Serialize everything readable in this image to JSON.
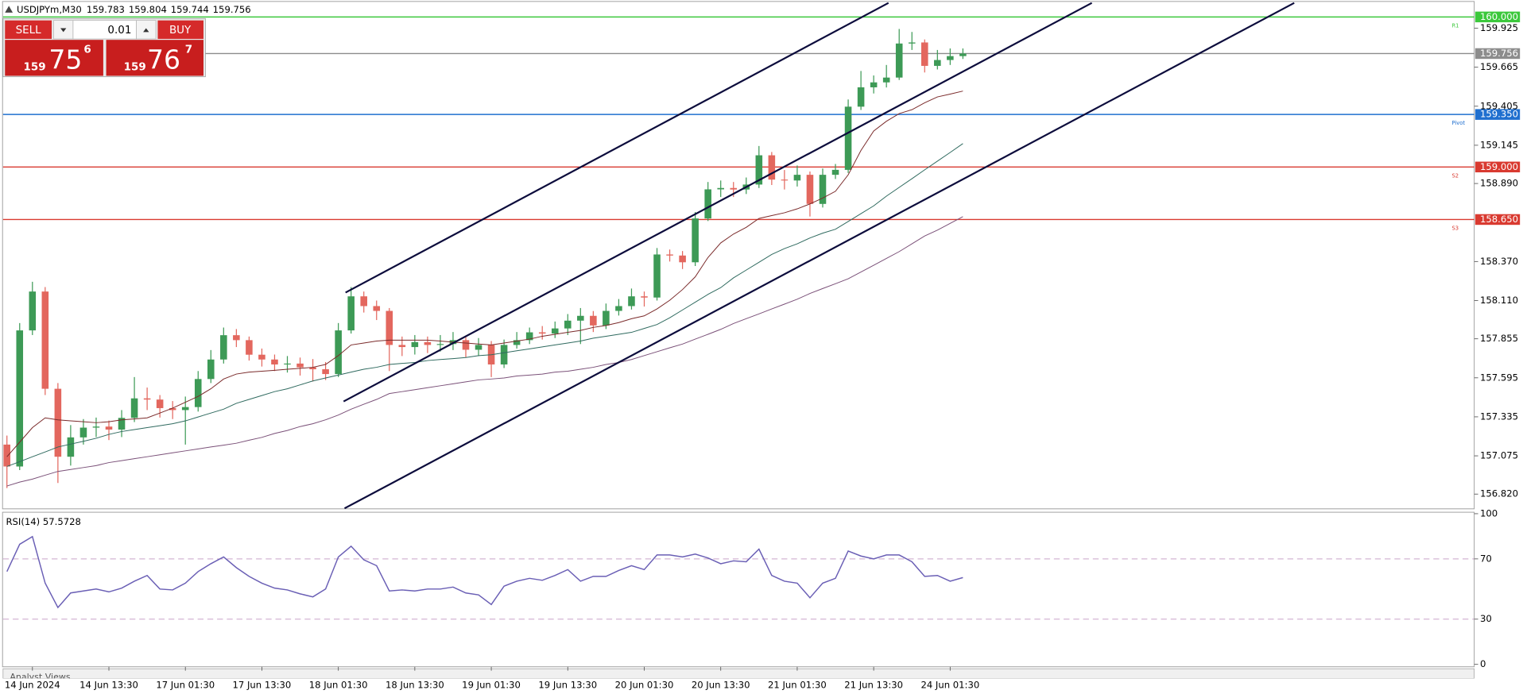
{
  "header": {
    "symbol": "USDJPYm,M30",
    "quote": [
      159.783,
      159.804,
      159.744,
      159.756
    ]
  },
  "trade_panel": {
    "sell": "SELL",
    "buy": "BUY",
    "lot": "0.01",
    "bid": {
      "big": "159",
      "main": "75",
      "small": "6"
    },
    "ask": {
      "big": "159",
      "main": "76",
      "small": "7"
    }
  },
  "analyst_views": "Analyst Views",
  "chart_data": [
    {
      "type": "candlestick",
      "categories": [
        null,
        null,
        "14 Jun 2024",
        null,
        null,
        null,
        null,
        null,
        "14 Jun 13:30",
        null,
        null,
        null,
        null,
        null,
        "17 Jun 01:30",
        null,
        null,
        null,
        null,
        null,
        "17 Jun 13:30",
        null,
        null,
        null,
        null,
        null,
        "18 Jun 01:30",
        null,
        null,
        null,
        null,
        null,
        "18 Jun 13:30",
        null,
        null,
        null,
        null,
        null,
        "19 Jun 01:30",
        null,
        null,
        null,
        null,
        null,
        "19 Jun 13:30",
        null,
        null,
        null,
        null,
        null,
        "20 Jun 01:30",
        null,
        null,
        null,
        null,
        null,
        "20 Jun 13:30",
        null,
        null,
        null,
        null,
        null,
        "21 Jun 01:30",
        null,
        null,
        null,
        null,
        null,
        "21 Jun 13:30",
        null,
        null,
        null,
        null,
        null,
        "24 Jun 01:30",
        null
      ],
      "open": [
        157.15,
        157.004,
        157.911,
        158.17,
        157.522,
        157.069,
        157.198,
        157.263,
        157.27,
        157.25,
        157.328,
        157.458,
        157.45,
        157.393,
        157.38,
        157.4,
        157.587,
        157.717,
        157.879,
        157.846,
        157.749,
        157.717,
        157.684,
        157.69,
        157.665,
        157.652,
        157.62,
        157.911,
        158.138,
        158.073,
        158.041,
        157.814,
        157.8,
        157.833,
        157.814,
        157.82,
        157.846,
        157.782,
        157.814,
        157.684,
        157.814,
        157.846,
        157.898,
        157.89,
        157.924,
        157.976,
        158.008,
        157.944,
        158.041,
        158.073,
        158.138,
        158.13,
        158.417,
        158.41,
        158.365,
        158.657,
        158.851,
        158.86,
        158.85,
        158.883,
        159.078,
        158.916,
        158.91,
        158.948,
        158.754,
        158.948,
        158.981,
        159.402,
        159.531,
        159.564,
        159.596,
        159.823,
        159.83,
        159.674,
        159.713,
        159.739
      ],
      "high": [
        157.21,
        157.96,
        158.235,
        158.2,
        157.56,
        157.28,
        157.32,
        157.33,
        157.31,
        157.38,
        157.6,
        157.53,
        157.48,
        157.44,
        157.47,
        157.64,
        157.78,
        157.93,
        157.92,
        157.87,
        157.79,
        157.75,
        157.74,
        157.73,
        157.72,
        157.7,
        157.96,
        158.2,
        158.17,
        158.11,
        158.06,
        157.87,
        157.88,
        157.87,
        157.88,
        157.9,
        157.87,
        157.86,
        157.84,
        157.85,
        157.9,
        157.93,
        157.94,
        157.97,
        158.02,
        158.06,
        158.04,
        158.09,
        158.12,
        158.19,
        158.17,
        158.46,
        158.45,
        158.44,
        158.7,
        158.9,
        158.91,
        158.9,
        158.93,
        159.14,
        159.1,
        158.98,
        159.01,
        158.97,
        158.99,
        159.02,
        159.45,
        159.64,
        159.61,
        159.68,
        159.92,
        159.9,
        159.85,
        159.78,
        159.79,
        159.79
      ],
      "low": [
        156.86,
        156.98,
        157.88,
        157.48,
        156.894,
        157.01,
        157.15,
        157.2,
        157.18,
        157.2,
        157.3,
        157.38,
        157.33,
        157.32,
        157.15,
        157.37,
        157.56,
        157.69,
        157.8,
        157.71,
        157.67,
        157.64,
        157.63,
        157.61,
        157.57,
        157.58,
        157.6,
        157.89,
        158.03,
        157.98,
        157.64,
        157.74,
        157.75,
        157.76,
        157.77,
        157.78,
        157.73,
        157.74,
        157.6,
        157.66,
        157.79,
        157.82,
        157.85,
        157.86,
        157.88,
        157.82,
        157.9,
        157.92,
        158.01,
        158.05,
        158.07,
        158.11,
        158.37,
        158.32,
        158.34,
        158.64,
        158.8,
        158.8,
        158.82,
        158.86,
        158.88,
        158.85,
        158.87,
        158.67,
        158.73,
        158.92,
        158.96,
        159.38,
        159.49,
        159.53,
        159.58,
        159.78,
        159.63,
        159.65,
        159.68,
        159.72
      ],
      "close": [
        157.004,
        157.911,
        158.17,
        157.522,
        157.069,
        157.198,
        157.263,
        157.27,
        157.25,
        157.328,
        157.458,
        157.45,
        157.393,
        157.38,
        157.4,
        157.587,
        157.717,
        157.879,
        157.846,
        157.749,
        157.717,
        157.684,
        157.69,
        157.665,
        157.652,
        157.62,
        157.911,
        158.138,
        158.073,
        158.041,
        157.814,
        157.8,
        157.833,
        157.814,
        157.82,
        157.846,
        157.782,
        157.814,
        157.684,
        157.814,
        157.846,
        157.898,
        157.89,
        157.924,
        157.976,
        158.008,
        157.944,
        158.041,
        158.073,
        158.138,
        158.13,
        158.417,
        158.41,
        158.365,
        158.657,
        158.851,
        158.86,
        158.85,
        158.883,
        159.078,
        158.916,
        158.91,
        158.948,
        158.754,
        158.948,
        158.981,
        159.402,
        159.531,
        159.564,
        159.596,
        159.823,
        159.83,
        159.674,
        159.713,
        159.739,
        159.756
      ],
      "up_color": "#3d9a56",
      "down_color": "#e3675e",
      "moving_averages": [
        {
          "color": "#7a2a2a",
          "values": [
            157.069,
            157.166,
            157.263,
            157.328,
            157.315,
            157.308,
            157.302,
            157.296,
            157.302,
            157.315,
            157.321,
            157.328,
            157.36,
            157.393,
            157.432,
            157.471,
            157.522,
            157.587,
            157.62,
            157.633,
            157.639,
            157.645,
            157.652,
            157.658,
            157.665,
            157.684,
            157.743,
            157.814,
            157.827,
            157.84,
            157.846,
            157.846,
            157.846,
            157.846,
            157.84,
            157.833,
            157.827,
            157.82,
            157.814,
            157.827,
            157.84,
            157.853,
            157.872,
            157.885,
            157.898,
            157.911,
            157.931,
            157.944,
            157.963,
            157.989,
            158.008,
            158.054,
            158.112,
            158.183,
            158.268,
            158.397,
            158.494,
            158.553,
            158.598,
            158.657,
            158.676,
            158.695,
            158.721,
            158.754,
            158.793,
            158.838,
            158.948,
            159.11,
            159.24,
            159.305,
            159.356,
            159.382,
            159.428,
            159.467,
            159.486,
            159.506
          ]
        },
        {
          "color": "#2f6a5f",
          "values": [
            157.004,
            157.036,
            157.069,
            157.101,
            157.134,
            157.153,
            157.172,
            157.192,
            157.218,
            157.237,
            157.25,
            157.263,
            157.276,
            157.289,
            157.308,
            157.334,
            157.36,
            157.386,
            157.425,
            157.451,
            157.477,
            157.503,
            157.522,
            157.548,
            157.574,
            157.594,
            157.613,
            157.633,
            157.652,
            157.665,
            157.684,
            157.691,
            157.697,
            157.71,
            157.717,
            157.723,
            157.73,
            157.743,
            157.749,
            157.762,
            157.775,
            157.788,
            157.801,
            157.814,
            157.827,
            157.84,
            157.859,
            157.872,
            157.885,
            157.898,
            157.924,
            157.95,
            157.995,
            158.047,
            158.099,
            158.151,
            158.196,
            158.261,
            158.313,
            158.365,
            158.417,
            158.456,
            158.488,
            158.527,
            158.559,
            158.585,
            158.637,
            158.689,
            158.741,
            158.806,
            158.864,
            158.922,
            158.981,
            159.039,
            159.097,
            159.156
          ]
        },
        {
          "color": "#7a5078",
          "values": [
            156.874,
            156.9,
            156.92,
            156.946,
            156.971,
            156.984,
            156.997,
            157.01,
            157.03,
            157.043,
            157.056,
            157.069,
            157.082,
            157.095,
            157.108,
            157.121,
            157.134,
            157.146,
            157.159,
            157.179,
            157.198,
            157.224,
            157.244,
            157.27,
            157.289,
            157.315,
            157.347,
            157.386,
            157.419,
            157.451,
            157.49,
            157.503,
            157.516,
            157.529,
            157.542,
            157.555,
            157.568,
            157.581,
            157.587,
            157.594,
            157.607,
            157.613,
            157.62,
            157.633,
            157.639,
            157.652,
            157.665,
            157.684,
            157.697,
            157.717,
            157.743,
            157.769,
            157.795,
            157.82,
            157.853,
            157.885,
            157.918,
            157.957,
            157.989,
            158.021,
            158.054,
            158.086,
            158.119,
            158.157,
            158.19,
            158.222,
            158.255,
            158.3,
            158.345,
            158.391,
            158.436,
            158.488,
            158.54,
            158.579,
            158.624,
            158.669
          ]
        }
      ],
      "ylim": [
        156.725,
        160.1
      ],
      "yticks": [
        {
          "value": 156.82,
          "label": "156.820"
        },
        157.075,
        157.335,
        157.595,
        157.855,
        {
          "value": 158.11,
          "label": "158.110"
        },
        {
          "value": 158.37,
          "label": "158.370"
        },
        {
          "value": 158.89,
          "label": "158.890"
        },
        159.145,
        159.405,
        159.665,
        159.925
      ],
      "levels": [
        {
          "value": 160,
          "label": "160.000",
          "color": "#3cc83c",
          "tag": "R1"
        },
        {
          "value": 159.756,
          "label": "159.756",
          "color": "#8c8c8c"
        },
        {
          "value": 159.35,
          "label": "159.350",
          "color": "#1f6fcf",
          "tag": "Pivot"
        },
        {
          "value": 159,
          "label": "159.000",
          "color": "#d93a30",
          "tag": "S2"
        },
        {
          "value": 158.65,
          "label": "158.650",
          "color": "#d93a30",
          "tag": "S3"
        }
      ]
    },
    {
      "type": "line",
      "title": "RSI(14) 57.5728",
      "color": "#6a5fb5",
      "values": [
        61.6,
        79.7,
        84.8,
        53.9,
        37.7,
        47.4,
        48.7,
        50.0,
        48.1,
        50.6,
        55.2,
        59.0,
        50.0,
        49.4,
        53.9,
        61.6,
        66.8,
        71.3,
        64.2,
        58.4,
        53.9,
        50.6,
        49.4,
        46.8,
        44.8,
        50.0,
        71.3,
        78.4,
        69.4,
        65.5,
        48.7,
        49.4,
        48.7,
        50.0,
        50.0,
        51.3,
        47.4,
        46.1,
        39.7,
        51.9,
        55.2,
        57.1,
        55.8,
        59.0,
        62.9,
        55.2,
        58.4,
        58.4,
        62.3,
        65.5,
        62.9,
        72.6,
        72.6,
        71.3,
        73.2,
        70.6,
        66.8,
        68.7,
        68.1,
        76.5,
        59.0,
        55.2,
        53.9,
        44.2,
        53.9,
        57.1,
        75.2,
        71.9,
        70.0,
        72.6,
        72.6,
        68.1,
        58.4,
        59.0,
        55.2,
        57.6
      ],
      "ylim": [
        0,
        100
      ],
      "yticks": [
        0,
        30,
        70,
        100
      ],
      "levels": [
        70,
        30
      ],
      "level_color": "#c9a3c9"
    }
  ]
}
